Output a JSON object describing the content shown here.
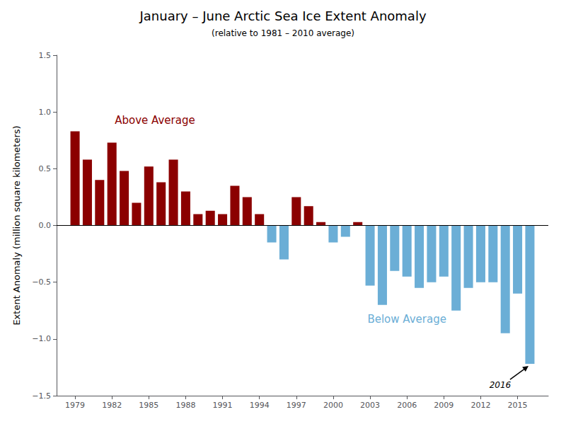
{
  "chart_data": {
    "type": "bar",
    "title": "January – June Arctic Sea Ice Extent Anomaly",
    "subtitle": "(relative to 1981 – 2010 average)",
    "ylabel": "Extent Anomaly (million square kilometers)",
    "x": [
      1979,
      1980,
      1981,
      1982,
      1983,
      1984,
      1985,
      1986,
      1987,
      1988,
      1989,
      1990,
      1991,
      1992,
      1993,
      1994,
      1995,
      1996,
      1997,
      1998,
      1999,
      2000,
      2001,
      2002,
      2003,
      2004,
      2005,
      2006,
      2007,
      2008,
      2009,
      2010,
      2011,
      2012,
      2013,
      2014,
      2015,
      2016
    ],
    "values": [
      0.83,
      0.58,
      0.4,
      0.73,
      0.48,
      0.2,
      0.52,
      0.38,
      0.58,
      0.3,
      0.1,
      0.13,
      0.1,
      0.35,
      0.25,
      0.1,
      -0.15,
      -0.3,
      0.25,
      0.17,
      0.03,
      -0.15,
      -0.1,
      0.03,
      -0.53,
      -0.7,
      -0.4,
      -0.45,
      -0.55,
      -0.5,
      -0.45,
      -0.75,
      -0.55,
      -0.5,
      -0.5,
      -0.95,
      -0.6,
      -1.22
    ],
    "colors": [
      "#8B0000",
      "#8B0000",
      "#8B0000",
      "#8B0000",
      "#8B0000",
      "#8B0000",
      "#8B0000",
      "#8B0000",
      "#8B0000",
      "#8B0000",
      "#8B0000",
      "#8B0000",
      "#8B0000",
      "#8B0000",
      "#8B0000",
      "#8B0000",
      "#6BAED6",
      "#6BAED6",
      "#8B0000",
      "#8B0000",
      "#8B0000",
      "#6BAED6",
      "#6BAED6",
      "#8B0000",
      "#6BAED6",
      "#6BAED6",
      "#6BAED6",
      "#6BAED6",
      "#6BAED6",
      "#6BAED6",
      "#6BAED6",
      "#6BAED6",
      "#6BAED6",
      "#6BAED6",
      "#6BAED6",
      "#6BAED6",
      "#6BAED6",
      "#6BAED6"
    ],
    "xlim": [
      1977.5,
      2017.5
    ],
    "xticks": [
      1979,
      1982,
      1985,
      1988,
      1991,
      1994,
      1997,
      2000,
      2003,
      2006,
      2009,
      2012,
      2015
    ],
    "ylim": [
      -1.5,
      1.5
    ],
    "yticks": [
      {
        "value": -1.5,
        "label": "−1.5"
      },
      {
        "value": -1.0,
        "label": "−1.0"
      },
      {
        "value": -0.5,
        "label": "−0.5"
      },
      {
        "value": 0.0,
        "label": "0.0"
      },
      {
        "value": 0.5,
        "label": "0.5"
      },
      {
        "value": 1.0,
        "label": "1.0"
      },
      {
        "value": 1.5,
        "label": "1.5"
      }
    ],
    "grid": false,
    "annotations": [
      {
        "text": "Above Average",
        "x": 1985.5,
        "y": 0.88,
        "color": "#8B0000"
      },
      {
        "text": "Below Average",
        "x": 2006,
        "y": -0.78,
        "color": "#6BAED6"
      },
      {
        "text": "2016",
        "x": 2016,
        "y": -1.22
      }
    ]
  }
}
